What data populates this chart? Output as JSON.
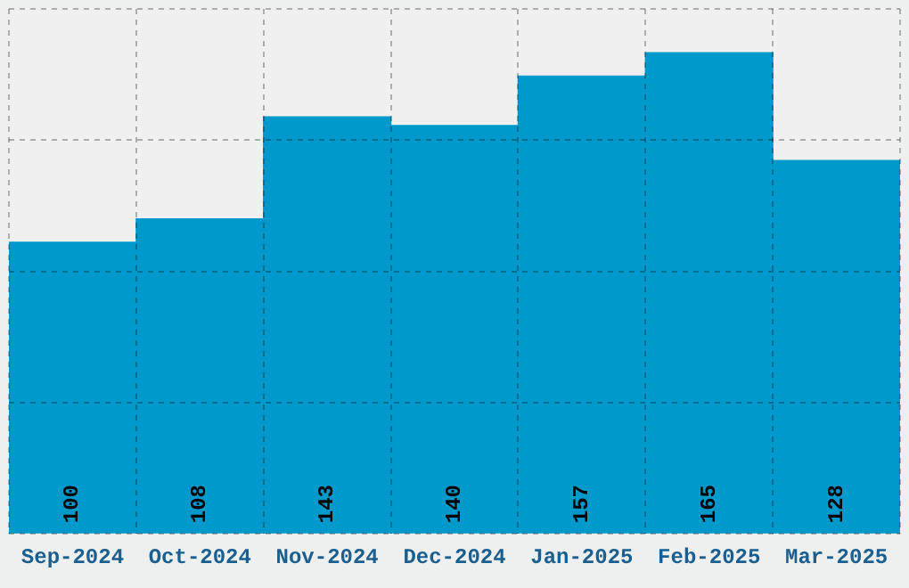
{
  "chart_data": {
    "type": "bar",
    "categories": [
      "Sep-2024",
      "Oct-2024",
      "Nov-2024",
      "Dec-2024",
      "Jan-2025",
      "Feb-2025",
      "Mar-2025"
    ],
    "values": [
      100,
      108,
      143,
      140,
      157,
      165,
      128
    ],
    "color": "#0099cc",
    "data_labels": true,
    "grid": true,
    "tick_labels": "x",
    "ylim": [
      0,
      180
    ],
    "yticks": [
      {
        "value": 0,
        "label": null
      },
      {
        "value": 45,
        "label": null
      },
      {
        "value": 90,
        "label": null
      },
      {
        "value": 135,
        "label": null
      },
      {
        "value": 180,
        "label": null
      }
    ]
  }
}
